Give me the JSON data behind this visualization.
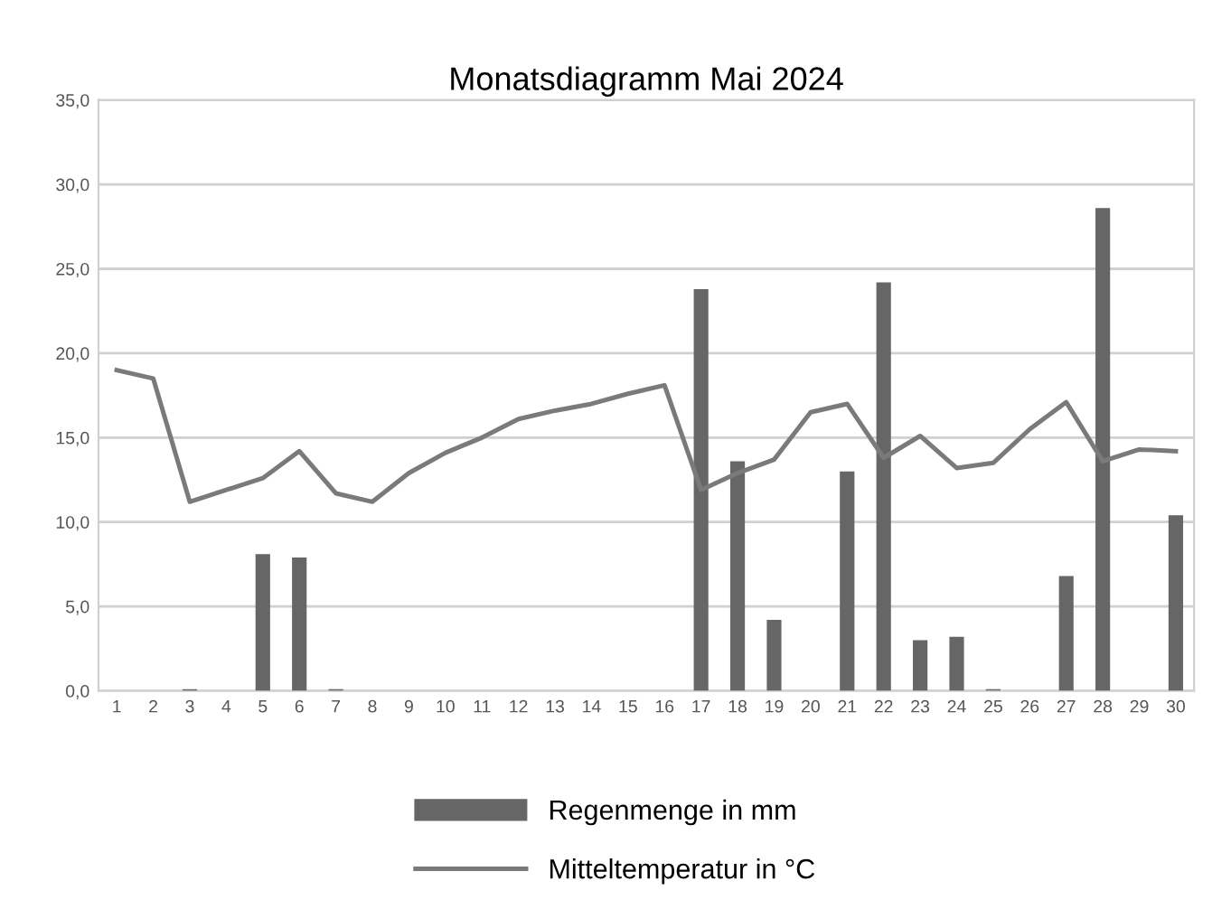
{
  "chart_data": {
    "type": "bar",
    "title": "Monatsdiagramm Mai 2024",
    "categories": [
      "1",
      "2",
      "3",
      "4",
      "5",
      "6",
      "7",
      "8",
      "9",
      "10",
      "11",
      "12",
      "13",
      "14",
      "15",
      "16",
      "17",
      "18",
      "19",
      "20",
      "21",
      "22",
      "23",
      "24",
      "25",
      "26",
      "27",
      "28",
      "29",
      "30"
    ],
    "series": [
      {
        "name": "Regenmenge in mm",
        "color": "#666666",
        "values": [
          0,
          0,
          0.1,
          0,
          8.1,
          7.9,
          0.1,
          0,
          0,
          0,
          0,
          0,
          0,
          0,
          0,
          0,
          23.8,
          13.6,
          4.2,
          0,
          13.0,
          24.2,
          3.0,
          3.2,
          0.1,
          0,
          6.8,
          28.6,
          0,
          10.4
        ]
      },
      {
        "name": "Mitteltemperatur in °C",
        "type": "line",
        "color": "#7a7a7a",
        "values": [
          19.0,
          18.5,
          11.2,
          11.9,
          12.6,
          14.2,
          11.7,
          11.2,
          12.9,
          14.1,
          15.0,
          16.1,
          16.6,
          17.0,
          17.6,
          18.1,
          11.9,
          12.9,
          13.7,
          16.5,
          17.0,
          13.8,
          15.1,
          13.2,
          13.5,
          15.5,
          17.1,
          13.6,
          14.3,
          14.2
        ]
      }
    ],
    "ylim": [
      0,
      35
    ],
    "yticks": [
      {
        "value": 0,
        "label": "0,0"
      },
      {
        "value": 5,
        "label": "5,0"
      },
      {
        "value": 10,
        "label": "10,0"
      },
      {
        "value": 15,
        "label": "15,0"
      },
      {
        "value": 20,
        "label": "20,0"
      },
      {
        "value": 25,
        "label": "25,0"
      },
      {
        "value": 30,
        "label": "30,0"
      },
      {
        "value": 35,
        "label": "35,0"
      }
    ],
    "grid": "y",
    "legend": "bottom",
    "marker": "none",
    "line_style": "solid"
  }
}
